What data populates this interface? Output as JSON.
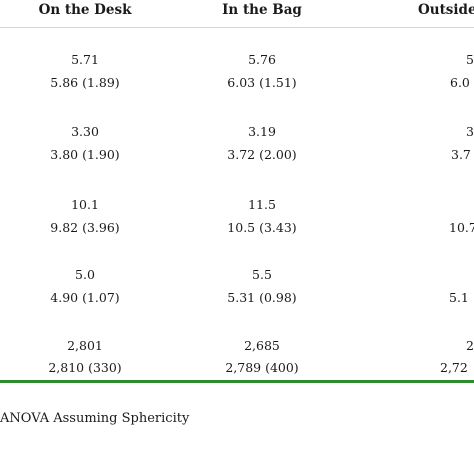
{
  "table": {
    "headers": [
      "On the Desk",
      "In the Bag",
      "Outside"
    ],
    "rows": [
      {
        "col1": [
          "5.71",
          "5.86 (1.89)"
        ],
        "col2": [
          "5.76",
          "6.03 (1.51)"
        ],
        "col3": [
          "5",
          "6.0"
        ]
      },
      {
        "col1": [
          "3.30",
          "3.80 (1.90)"
        ],
        "col2": [
          "3.19",
          "3.72 (2.00)"
        ],
        "col3": [
          "3",
          "3.7"
        ]
      },
      {
        "col1": [
          "10.1",
          "9.82 (3.96)"
        ],
        "col2": [
          "11.5",
          "10.5 (3.43)"
        ],
        "col3": [
          "",
          "10.7"
        ]
      },
      {
        "col1": [
          "5.0",
          "4.90 (1.07)"
        ],
        "col2": [
          "5.5",
          "5.31 (0.98)"
        ],
        "col3": [
          "",
          "5.1"
        ]
      },
      {
        "col1": [
          "2,801",
          "2,810 (330)"
        ],
        "col2": [
          "2,685",
          "2,789 (400)"
        ],
        "col3": [
          "2",
          "2,72"
        ]
      }
    ]
  },
  "footnote": "ANOVA Assuming Sphericity",
  "colors": {
    "rule": "#2e8b2e"
  }
}
